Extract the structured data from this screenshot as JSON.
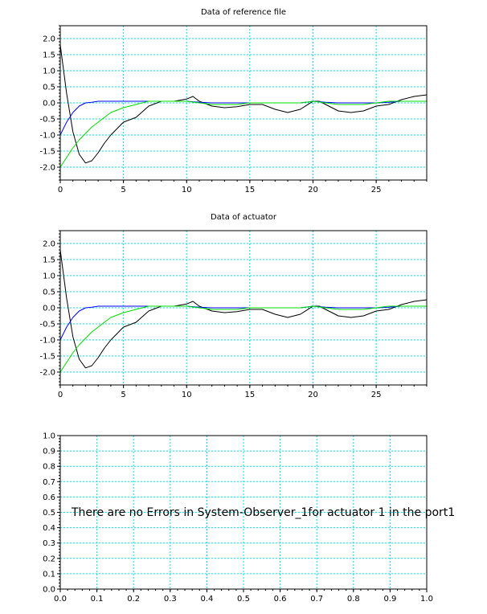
{
  "chart_data": [
    {
      "type": "line",
      "title": "Data of reference file",
      "xlabel": "",
      "ylabel": "",
      "xlim": [
        0,
        29
      ],
      "ylim": [
        -2.4,
        2.4
      ],
      "x_ticks": [
        0,
        5,
        10,
        15,
        20,
        25
      ],
      "x_tick_labels": [
        "0",
        "5",
        "10",
        "15",
        "20",
        "25"
      ],
      "y_ticks": [
        -2.0,
        -1.5,
        -1.0,
        -0.5,
        0.0,
        0.5,
        1.0,
        1.5,
        2.0
      ],
      "y_tick_labels": [
        "-2.0",
        "-1.5",
        "-1.0",
        "-0.5",
        "0.0",
        "0.5",
        "1.0",
        "1.5",
        "2.0"
      ],
      "grid": true,
      "grid_color": "#00e5e5",
      "series": [
        {
          "color": "#000000",
          "x": [
            0,
            0.5,
            1,
            1.5,
            2,
            2.5,
            3,
            3.5,
            4,
            5,
            6,
            7,
            8,
            9,
            10,
            10.5,
            11,
            12,
            13,
            14,
            15,
            16,
            17,
            18,
            19,
            20,
            20.5,
            21,
            22,
            23,
            24,
            25,
            26,
            27,
            28,
            29
          ],
          "y": [
            1.8,
            0.3,
            -0.9,
            -1.6,
            -1.87,
            -1.8,
            -1.55,
            -1.25,
            -1.0,
            -0.6,
            -0.45,
            -0.1,
            0.05,
            0.05,
            0.12,
            0.2,
            0.05,
            -0.1,
            -0.15,
            -0.12,
            -0.05,
            -0.05,
            -0.2,
            -0.3,
            -0.2,
            0.05,
            0.05,
            -0.05,
            -0.25,
            -0.3,
            -0.25,
            -0.1,
            -0.05,
            0.1,
            0.2,
            0.25
          ]
        },
        {
          "color": "#0000ff",
          "x": [
            0,
            0.5,
            1,
            1.5,
            2,
            2.5,
            3,
            4,
            5,
            6,
            7,
            8,
            9,
            10,
            11,
            12,
            13,
            14,
            15,
            16,
            17,
            18,
            19,
            20,
            21,
            22,
            23,
            24,
            25,
            26,
            27,
            28,
            29
          ],
          "y": [
            -1.0,
            -0.6,
            -0.3,
            -0.1,
            0.0,
            0.02,
            0.05,
            0.05,
            0.05,
            0.05,
            0.05,
            0.05,
            0.05,
            0.05,
            0.02,
            0.0,
            0.0,
            0.0,
            0.0,
            0.0,
            0.0,
            0.0,
            0.0,
            0.05,
            0.02,
            0.0,
            0.0,
            0.0,
            0.0,
            0.02,
            0.05,
            0.05,
            0.05
          ]
        },
        {
          "color": "#00dd00",
          "x": [
            0,
            0.5,
            1,
            1.5,
            2,
            2.5,
            3,
            3.5,
            4,
            5,
            6,
            7,
            8,
            9,
            10,
            11,
            12,
            13,
            14,
            15,
            16,
            17,
            18,
            19,
            20,
            21,
            22,
            23,
            24,
            25,
            26,
            27,
            28,
            29
          ],
          "y": [
            -2.0,
            -1.7,
            -1.4,
            -1.15,
            -0.95,
            -0.75,
            -0.6,
            -0.45,
            -0.3,
            -0.15,
            -0.05,
            0.05,
            0.05,
            0.05,
            0.05,
            0.0,
            -0.05,
            -0.05,
            -0.05,
            0.0,
            0.0,
            0.0,
            0.0,
            0.0,
            0.05,
            0.0,
            -0.05,
            -0.05,
            -0.05,
            0.0,
            0.05,
            0.05,
            0.05,
            0.05
          ]
        }
      ]
    },
    {
      "type": "line",
      "title": "Data of actuator",
      "xlabel": "",
      "ylabel": "",
      "xlim": [
        0,
        29
      ],
      "ylim": [
        -2.4,
        2.4
      ],
      "x_ticks": [
        0,
        5,
        10,
        15,
        20,
        25
      ],
      "x_tick_labels": [
        "0",
        "5",
        "10",
        "15",
        "20",
        "25"
      ],
      "y_ticks": [
        -2.0,
        -1.5,
        -1.0,
        -0.5,
        0.0,
        0.5,
        1.0,
        1.5,
        2.0
      ],
      "y_tick_labels": [
        "-2.0",
        "-1.5",
        "-1.0",
        "-0.5",
        "0.0",
        "0.5",
        "1.0",
        "1.5",
        "2.0"
      ],
      "grid": true,
      "grid_color": "#00e5e5",
      "series": [
        {
          "color": "#000000",
          "x": [
            0,
            0.5,
            1,
            1.5,
            2,
            2.5,
            3,
            3.5,
            4,
            5,
            6,
            7,
            8,
            9,
            10,
            10.5,
            11,
            12,
            13,
            14,
            15,
            16,
            17,
            18,
            19,
            20,
            20.5,
            21,
            22,
            23,
            24,
            25,
            26,
            27,
            28,
            29
          ],
          "y": [
            1.8,
            0.3,
            -0.9,
            -1.6,
            -1.87,
            -1.8,
            -1.55,
            -1.25,
            -1.0,
            -0.6,
            -0.45,
            -0.1,
            0.05,
            0.05,
            0.12,
            0.2,
            0.05,
            -0.1,
            -0.15,
            -0.12,
            -0.05,
            -0.05,
            -0.2,
            -0.3,
            -0.2,
            0.05,
            0.05,
            -0.05,
            -0.25,
            -0.3,
            -0.25,
            -0.1,
            -0.05,
            0.1,
            0.2,
            0.25
          ]
        },
        {
          "color": "#0000ff",
          "x": [
            0,
            0.5,
            1,
            1.5,
            2,
            2.5,
            3,
            4,
            5,
            6,
            7,
            8,
            9,
            10,
            11,
            12,
            13,
            14,
            15,
            16,
            17,
            18,
            19,
            20,
            21,
            22,
            23,
            24,
            25,
            26,
            27,
            28,
            29
          ],
          "y": [
            -1.0,
            -0.6,
            -0.3,
            -0.1,
            0.0,
            0.02,
            0.05,
            0.05,
            0.05,
            0.05,
            0.05,
            0.05,
            0.05,
            0.05,
            0.02,
            0.0,
            0.0,
            0.0,
            0.0,
            0.0,
            0.0,
            0.0,
            0.0,
            0.05,
            0.02,
            0.0,
            0.0,
            0.0,
            0.0,
            0.02,
            0.05,
            0.05,
            0.05
          ]
        },
        {
          "color": "#00dd00",
          "x": [
            0,
            0.5,
            1,
            1.5,
            2,
            2.5,
            3,
            3.5,
            4,
            5,
            6,
            7,
            8,
            9,
            10,
            11,
            12,
            13,
            14,
            15,
            16,
            17,
            18,
            19,
            20,
            21,
            22,
            23,
            24,
            25,
            26,
            27,
            28,
            29
          ],
          "y": [
            -2.0,
            -1.7,
            -1.4,
            -1.15,
            -0.95,
            -0.75,
            -0.6,
            -0.45,
            -0.3,
            -0.15,
            -0.05,
            0.05,
            0.05,
            0.05,
            0.05,
            0.0,
            -0.05,
            -0.05,
            -0.05,
            0.0,
            0.0,
            0.0,
            0.0,
            0.0,
            0.05,
            0.0,
            -0.05,
            -0.05,
            -0.05,
            0.0,
            0.05,
            0.05,
            0.05,
            0.05
          ]
        }
      ]
    },
    {
      "type": "line",
      "title": "",
      "xlabel": "",
      "ylabel": "",
      "xlim": [
        0,
        1
      ],
      "ylim": [
        0,
        1
      ],
      "x_ticks": [
        0,
        0.1,
        0.2,
        0.3,
        0.4,
        0.5,
        0.6,
        0.7,
        0.8,
        0.9,
        1.0
      ],
      "x_tick_labels": [
        "0.0",
        "0.1",
        "0.2",
        "0.3",
        "0.4",
        "0.5",
        "0.6",
        "0.7",
        "0.8",
        "0.9",
        "1.0"
      ],
      "y_ticks": [
        0,
        0.1,
        0.2,
        0.3,
        0.4,
        0.5,
        0.6,
        0.7,
        0.8,
        0.9,
        1.0
      ],
      "y_tick_labels": [
        "0.0",
        "0.1",
        "0.2",
        "0.3",
        "0.4",
        "0.5",
        "0.6",
        "0.7",
        "0.8",
        "0.9",
        "1.0"
      ],
      "grid": true,
      "grid_color": "#00e5e5",
      "annotation": "There are no Errors in System-Observer_1for actuator 1 in the port1",
      "series": []
    }
  ]
}
